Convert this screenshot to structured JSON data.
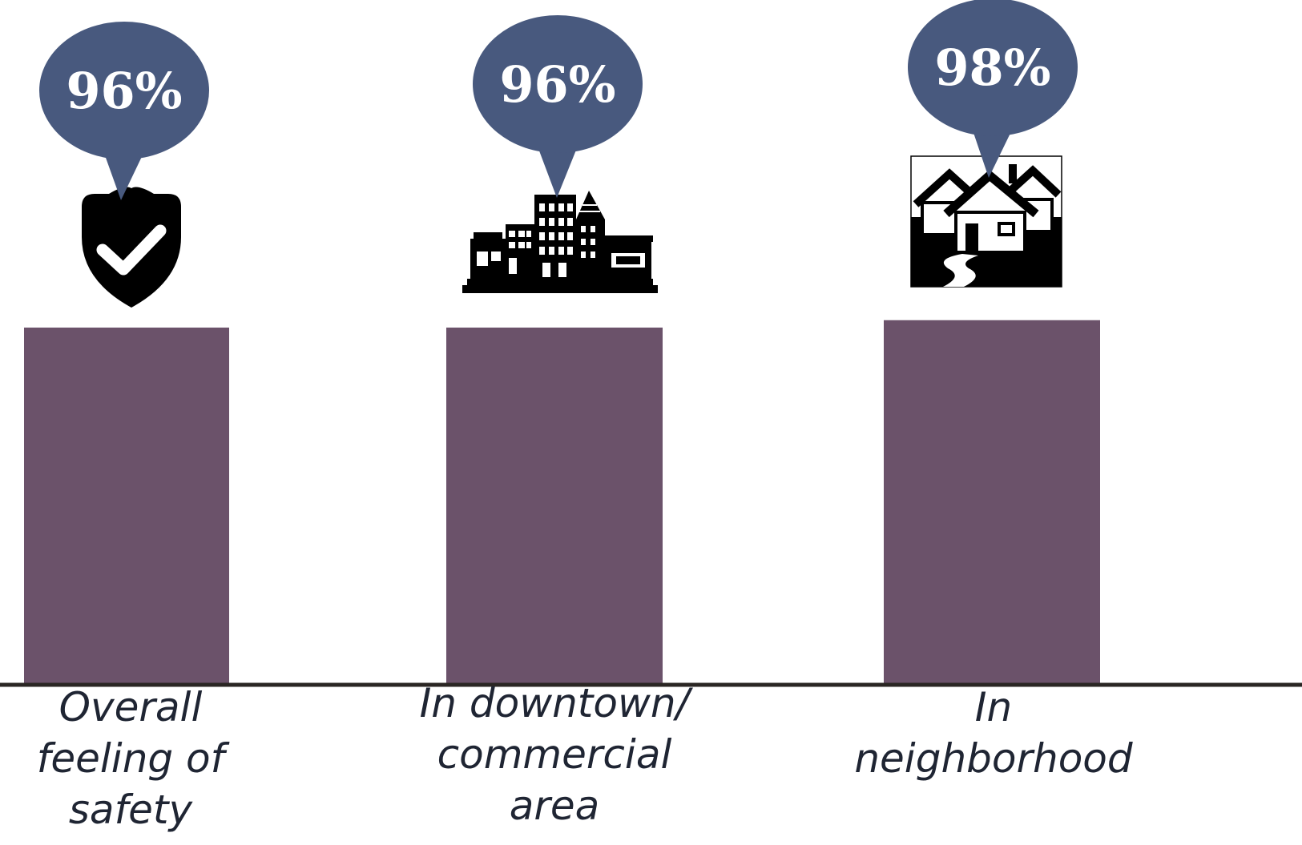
{
  "chart_data": {
    "type": "bar",
    "categories": [
      "Overall feeling of safety",
      "In downtown/ commercial area",
      "In neighborhood"
    ],
    "category_lines": [
      [
        "Overall",
        "feeling of",
        "safety"
      ],
      [
        "In downtown/",
        "commercial",
        "area"
      ],
      [
        "In",
        "neighborhood"
      ]
    ],
    "values": [
      96,
      96,
      98
    ],
    "data_labels": [
      "96%",
      "96%",
      "98%"
    ],
    "icons": [
      "shield-check-icon",
      "downtown-buildings-icon",
      "neighborhood-houses-icon"
    ],
    "colors": {
      "bar": "#6b526a",
      "bubble": "#48597e",
      "axis": "#2a2623",
      "label": "#1f2533"
    },
    "grid": false,
    "legend": "none"
  }
}
